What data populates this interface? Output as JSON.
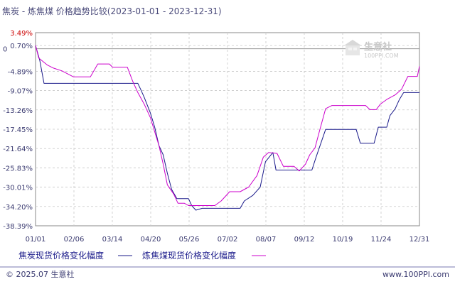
{
  "chart_data": {
    "type": "line",
    "title": "焦炭 - 炼焦煤 价格趋势比较(2023-01-01 - 2023-12-31)",
    "x_ticks": [
      "01/01",
      "02/06",
      "03/14",
      "04/20",
      "05/26",
      "07/02",
      "08/07",
      "09/12",
      "10/19",
      "11/24",
      "12/31"
    ],
    "y_ticks": [
      "3.49%",
      "0.70%",
      "-4.89%",
      "-9.07%",
      "-13.26%",
      "-17.45%",
      "-21.64%",
      "-25.83%",
      "-30.01%",
      "-34.20%",
      "-38.39%"
    ],
    "zero_label": "0",
    "ylim": [
      -38.39,
      3.49
    ],
    "grid": true,
    "legend_position": "bottom",
    "series": [
      {
        "name": "焦炭现货价格变化幅度",
        "color": "#1a1a8a",
        "points": [
          [
            "2023-01-01",
            0.7
          ],
          [
            "2023-01-05",
            -2.5
          ],
          [
            "2023-01-09",
            -7.5
          ],
          [
            "2023-04-08",
            -7.5
          ],
          [
            "2023-04-11",
            -9.0
          ],
          [
            "2023-04-14",
            -10.5
          ],
          [
            "2023-04-20",
            -14.0
          ],
          [
            "2023-04-24",
            -17.0
          ],
          [
            "2023-04-28",
            -21.0
          ],
          [
            "2023-05-02",
            -23.0
          ],
          [
            "2023-05-06",
            -27.0
          ],
          [
            "2023-05-10",
            -30.5
          ],
          [
            "2023-05-15",
            -32.5
          ],
          [
            "2023-05-26",
            -32.5
          ],
          [
            "2023-05-29",
            -34.0
          ],
          [
            "2023-06-02",
            -35.0
          ],
          [
            "2023-06-08",
            -34.6
          ],
          [
            "2023-07-14",
            -34.6
          ],
          [
            "2023-07-18",
            -33.0
          ],
          [
            "2023-07-26",
            -31.8
          ],
          [
            "2023-08-02",
            -30.0
          ],
          [
            "2023-08-07",
            -24.5
          ],
          [
            "2023-08-14",
            -22.5
          ],
          [
            "2023-08-17",
            -26.3
          ],
          [
            "2023-09-20",
            -26.3
          ],
          [
            "2023-09-24",
            -23.5
          ],
          [
            "2023-10-03",
            -17.5
          ],
          [
            "2023-11-01",
            -17.5
          ],
          [
            "2023-11-05",
            -20.5
          ],
          [
            "2023-11-18",
            -20.5
          ],
          [
            "2023-11-22",
            -17.0
          ],
          [
            "2023-11-30",
            -17.0
          ],
          [
            "2023-12-03",
            -14.5
          ],
          [
            "2023-12-08",
            -13.0
          ],
          [
            "2023-12-12",
            -11.0
          ],
          [
            "2023-12-16",
            -9.5
          ],
          [
            "2023-12-31",
            -9.5
          ]
        ]
      },
      {
        "name": "炼焦煤现货价格变化幅度",
        "color": "#cc00cc",
        "points": [
          [
            "2023-01-01",
            0.7
          ],
          [
            "2023-01-04",
            -2.0
          ],
          [
            "2023-01-12",
            -3.5
          ],
          [
            "2023-01-18",
            -4.2
          ],
          [
            "2023-01-26",
            -4.8
          ],
          [
            "2023-02-06",
            -6.1
          ],
          [
            "2023-02-22",
            -6.1
          ],
          [
            "2023-02-26",
            -4.5
          ],
          [
            "2023-03-01",
            -3.3
          ],
          [
            "2023-03-12",
            -3.3
          ],
          [
            "2023-03-15",
            -4.0
          ],
          [
            "2023-03-29",
            -4.0
          ],
          [
            "2023-04-03",
            -7.0
          ],
          [
            "2023-04-08",
            -9.5
          ],
          [
            "2023-04-14",
            -12.0
          ],
          [
            "2023-04-20",
            -15.0
          ],
          [
            "2023-04-24",
            -18.0
          ],
          [
            "2023-04-28",
            -21.0
          ],
          [
            "2023-05-02",
            -25.0
          ],
          [
            "2023-05-06",
            -29.5
          ],
          [
            "2023-05-12",
            -31.5
          ],
          [
            "2023-05-16",
            -33.5
          ],
          [
            "2023-05-22",
            -33.5
          ],
          [
            "2023-05-26",
            -34.0
          ],
          [
            "2023-06-20",
            -34.0
          ],
          [
            "2023-06-26",
            -33.0
          ],
          [
            "2023-07-04",
            -31.0
          ],
          [
            "2023-07-14",
            -31.0
          ],
          [
            "2023-07-22",
            -30.0
          ],
          [
            "2023-07-30",
            -27.5
          ],
          [
            "2023-08-05",
            -23.5
          ],
          [
            "2023-08-10",
            -22.5
          ],
          [
            "2023-08-18",
            -22.7
          ],
          [
            "2023-08-24",
            -25.5
          ],
          [
            "2023-09-03",
            -25.5
          ],
          [
            "2023-09-08",
            -26.5
          ],
          [
            "2023-09-14",
            -25.0
          ],
          [
            "2023-09-18",
            -23.0
          ],
          [
            "2023-09-23",
            -21.5
          ],
          [
            "2023-09-27",
            -18.0
          ],
          [
            "2023-10-03",
            -13.0
          ],
          [
            "2023-10-09",
            -12.3
          ],
          [
            "2023-11-10",
            -12.3
          ],
          [
            "2023-11-14",
            -13.2
          ],
          [
            "2023-11-20",
            -13.2
          ],
          [
            "2023-11-24",
            -12.0
          ],
          [
            "2023-11-30",
            -11.0
          ],
          [
            "2023-12-08",
            -10.0
          ],
          [
            "2023-12-14",
            -8.8
          ],
          [
            "2023-12-20",
            -6.0
          ],
          [
            "2023-12-29",
            -6.0
          ],
          [
            "2023-12-31",
            -3.8
          ]
        ]
      }
    ]
  },
  "watermark": {
    "brand": "生意社",
    "url": "100PPI.COM"
  },
  "footer": {
    "left": "© 2025.07 生意社",
    "right": "www.100PPI.com"
  }
}
